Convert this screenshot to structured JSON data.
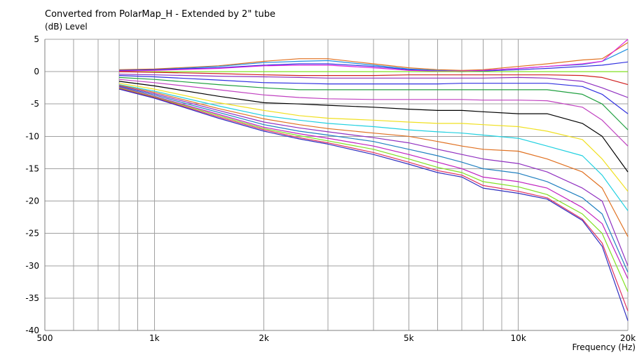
{
  "chart_data": {
    "type": "line",
    "title": "Converted from PolarMap_H - Extended by 2\" tube",
    "ylabel": "(dB)  Level",
    "xlabel": "Frequency  (Hz)",
    "x_scale": "log",
    "xlim": [
      500,
      20000
    ],
    "ylim": [
      -40,
      5
    ],
    "grid": true,
    "x_tick_labels": [
      {
        "value": 500,
        "label": "500"
      },
      {
        "value": 1000,
        "label": "1k"
      },
      {
        "value": 2000,
        "label": "2k"
      },
      {
        "value": 5000,
        "label": "5k"
      },
      {
        "value": 10000,
        "label": "10k"
      },
      {
        "value": 20000,
        "label": "20k"
      }
    ],
    "x_minor_grid": [
      600,
      700,
      800,
      900,
      3000,
      4000,
      6000,
      7000,
      8000,
      9000
    ],
    "y_ticks": [
      5,
      0,
      -5,
      -10,
      -15,
      -20,
      -25,
      -30,
      -35,
      -40
    ],
    "x": [
      800,
      1000,
      1500,
      2000,
      2500,
      3000,
      4000,
      5000,
      6000,
      7000,
      8000,
      10000,
      12000,
      15000,
      17000,
      20000
    ],
    "series": [
      {
        "color": "#e07020",
        "values": [
          0.3,
          0.4,
          0.9,
          1.6,
          2.0,
          2.0,
          1.2,
          0.6,
          0.3,
          0.2,
          0.3,
          0.8,
          1.2,
          1.8,
          2.0,
          4.5
        ]
      },
      {
        "color": "#2090e0",
        "values": [
          0.2,
          0.3,
          0.8,
          1.4,
          1.6,
          1.7,
          1.0,
          0.4,
          0.2,
          0.1,
          0.2,
          0.5,
          0.8,
          1.1,
          1.6,
          3.5
        ]
      },
      {
        "color": "#3030e0",
        "values": [
          0.2,
          0.3,
          0.6,
          1.0,
          1.2,
          1.2,
          0.8,
          0.3,
          0.1,
          0.0,
          0.1,
          0.3,
          0.5,
          0.8,
          1.0,
          1.5
        ]
      },
      {
        "color": "#e020e0",
        "values": [
          0.1,
          0.2,
          0.5,
          0.9,
          1.0,
          1.0,
          0.6,
          0.2,
          0.1,
          0.1,
          0.2,
          0.5,
          0.8,
          1.2,
          1.6,
          5.0
        ]
      },
      {
        "color": "#80e020",
        "values": [
          0.0,
          0.0,
          0.0,
          0.0,
          0.0,
          0.0,
          0.0,
          0.0,
          0.0,
          0.0,
          0.0,
          0.0,
          0.0,
          0.0,
          0.0,
          0.0
        ]
      },
      {
        "color": "#d02020",
        "values": [
          0.0,
          -0.1,
          -0.3,
          -0.5,
          -0.6,
          -0.6,
          -0.6,
          -0.5,
          -0.5,
          -0.5,
          -0.5,
          -0.5,
          -0.5,
          -0.6,
          -0.9,
          -2.0
        ]
      },
      {
        "color": "#9030c0",
        "values": [
          -0.4,
          -0.5,
          -0.7,
          -0.8,
          -0.9,
          -1.0,
          -1.0,
          -1.0,
          -1.0,
          -1.0,
          -1.0,
          -0.9,
          -1.0,
          -1.5,
          -2.5,
          -4.0
        ]
      },
      {
        "color": "#3030e0",
        "values": [
          -0.6,
          -0.8,
          -1.3,
          -1.7,
          -1.8,
          -1.9,
          -1.9,
          -1.9,
          -1.9,
          -1.8,
          -1.8,
          -1.8,
          -1.8,
          -2.3,
          -3.5,
          -6.5
        ]
      },
      {
        "color": "#20a040",
        "values": [
          -0.9,
          -1.2,
          -2.0,
          -2.5,
          -2.8,
          -2.8,
          -2.8,
          -2.8,
          -2.8,
          -2.8,
          -2.8,
          -2.8,
          -2.8,
          -3.5,
          -5.0,
          -9.0
        ]
      },
      {
        "color": "#c040c0",
        "values": [
          -1.2,
          -1.7,
          -2.8,
          -3.6,
          -4.0,
          -4.2,
          -4.3,
          -4.3,
          -4.3,
          -4.3,
          -4.4,
          -4.4,
          -4.5,
          -5.5,
          -7.5,
          -11.5
        ]
      },
      {
        "color": "#000000",
        "values": [
          -1.5,
          -2.2,
          -3.8,
          -4.8,
          -5.0,
          -5.2,
          -5.5,
          -5.8,
          -6.0,
          -6.0,
          -6.2,
          -6.5,
          -6.5,
          -8.0,
          -10.0,
          -15.5
        ]
      },
      {
        "color": "#f0e020",
        "values": [
          -1.8,
          -2.7,
          -4.8,
          -6.0,
          -6.8,
          -7.2,
          -7.5,
          -7.8,
          -8.0,
          -8.0,
          -8.2,
          -8.5,
          -9.2,
          -10.5,
          -13.5,
          -18.5
        ]
      },
      {
        "color": "#20d0e0",
        "values": [
          -2.0,
          -3.0,
          -5.3,
          -6.8,
          -7.5,
          -8.0,
          -8.5,
          -9.0,
          -9.3,
          -9.5,
          -9.8,
          -10.3,
          -11.5,
          -13.0,
          -16.0,
          -21.5
        ]
      },
      {
        "color": "#e07020",
        "values": [
          -2.1,
          -3.2,
          -5.7,
          -7.3,
          -8.2,
          -8.8,
          -9.5,
          -10.0,
          -10.8,
          -11.5,
          -12.0,
          -12.3,
          -13.5,
          -15.5,
          -18.0,
          -25.5
        ]
      },
      {
        "color": "#9030c0",
        "values": [
          -2.2,
          -3.4,
          -6.0,
          -7.8,
          -8.7,
          -9.3,
          -10.2,
          -11.0,
          -12.0,
          -12.8,
          -13.5,
          -14.2,
          -15.5,
          -18.0,
          -20.0,
          -30.0
        ]
      },
      {
        "color": "#2080c0",
        "values": [
          -2.3,
          -3.6,
          -6.3,
          -8.2,
          -9.2,
          -9.8,
          -10.8,
          -12.0,
          -13.0,
          -14.0,
          -15.0,
          -15.7,
          -17.0,
          -19.5,
          -22.0,
          -31.0
        ]
      },
      {
        "color": "#c020c0",
        "values": [
          -2.4,
          -3.8,
          -6.6,
          -8.6,
          -9.6,
          -10.3,
          -11.5,
          -12.8,
          -14.0,
          -15.0,
          -16.3,
          -17.0,
          -18.0,
          -21.0,
          -23.5,
          -32.0
        ]
      },
      {
        "color": "#80e020",
        "values": [
          -2.5,
          -3.9,
          -6.8,
          -8.8,
          -9.9,
          -10.7,
          -12.0,
          -13.5,
          -14.8,
          -15.6,
          -17.0,
          -17.8,
          -19.0,
          -22.0,
          -25.0,
          -34.0
        ]
      },
      {
        "color": "#e03060",
        "values": [
          -2.6,
          -4.0,
          -7.0,
          -9.0,
          -10.2,
          -11.0,
          -12.5,
          -14.0,
          -15.3,
          -16.0,
          -17.6,
          -18.5,
          -19.5,
          -22.8,
          -26.5,
          -37.0
        ]
      },
      {
        "color": "#3030c0",
        "values": [
          -2.7,
          -4.1,
          -7.2,
          -9.2,
          -10.4,
          -11.2,
          -12.8,
          -14.3,
          -15.6,
          -16.3,
          -18.0,
          -18.8,
          -19.7,
          -23.0,
          -27.0,
          -38.5
        ]
      }
    ]
  }
}
